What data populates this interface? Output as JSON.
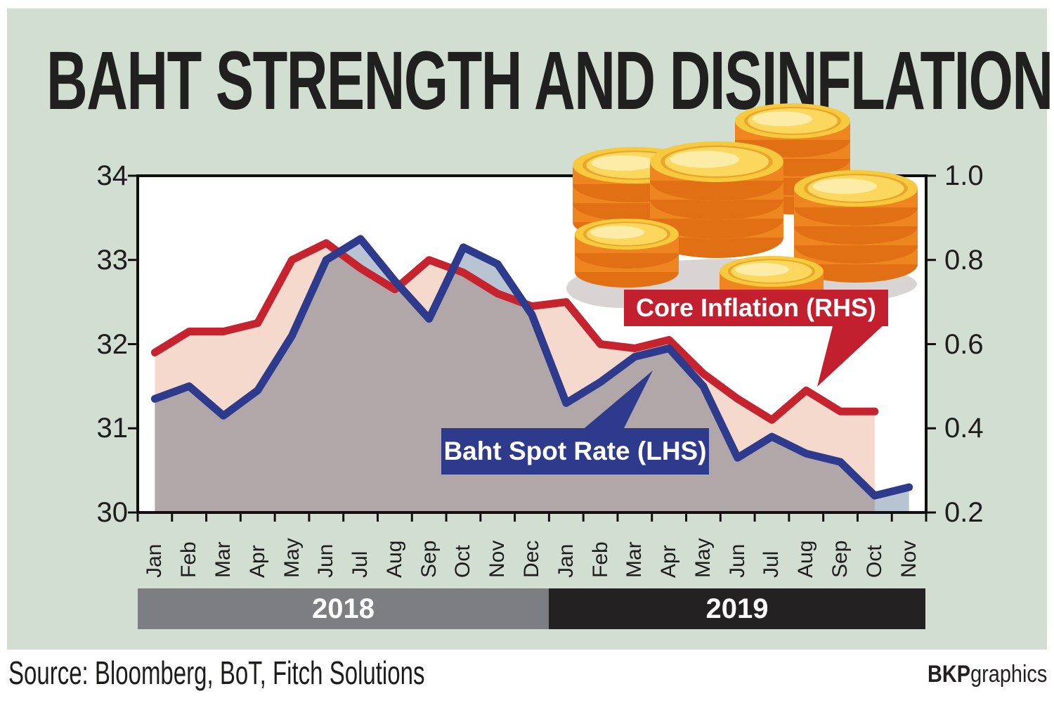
{
  "title": "BAHT STRENGTH AND DISINFLATION",
  "source_note": "Source: Bloomberg, BoT, Fitch Solutions",
  "credit": {
    "bold": "BKP",
    "normal": "graphics"
  },
  "callouts": {
    "core_inflation": {
      "label": "Core Inflation (RHS)",
      "color": "#c3202f"
    },
    "baht_spot": {
      "label": "Baht Spot Rate (LHS)",
      "color": "#2e3a8c"
    }
  },
  "year_bars": [
    {
      "label": "2018",
      "color": "#7d7e82"
    },
    {
      "label": "2019",
      "color": "#242122"
    }
  ],
  "colors": {
    "panel_background": "#d2ded2",
    "plot_background": "#ffffff",
    "axis_line": "#0f0f0e",
    "baht_line": "#2e3a8c",
    "baht_fill": "#b9c4d3",
    "core_line": "#c5242f",
    "core_fill": "#f4d9cc"
  },
  "chart_data": {
    "type": "line",
    "title": "BAHT STRENGTH AND DISINFLATION",
    "x_categories": [
      "Jan",
      "Feb",
      "Mar",
      "Apr",
      "May",
      "Jun",
      "Jul",
      "Aug",
      "Sep",
      "Oct",
      "Nov",
      "Dec",
      "Jan",
      "Feb",
      "Mar",
      "Apr",
      "May",
      "Jun",
      "Jul",
      "Aug",
      "Sep",
      "Oct",
      "Nov"
    ],
    "x_groups": [
      {
        "label": "2018",
        "months": 12
      },
      {
        "label": "2019",
        "months": 11
      }
    ],
    "left_axis": {
      "ticks": [
        "34",
        "33",
        "32",
        "31",
        "30"
      ],
      "tick_values": [
        34,
        33,
        32,
        31,
        30
      ],
      "range": [
        30,
        34
      ]
    },
    "right_axis": {
      "ticks": [
        "1.0",
        "0.8",
        "0.6",
        "0.4",
        "0.2"
      ],
      "tick_values": [
        1.0,
        0.8,
        0.6,
        0.4,
        0.2
      ],
      "range": [
        0.2,
        1.0
      ]
    },
    "grid": false,
    "legend_position": "callout-labels-on-plot",
    "series": [
      {
        "name": "Core Inflation (RHS)",
        "axis": "right",
        "color": "#c5242f",
        "fill": "#f4d9cc",
        "blend": "normal",
        "values": [
          0.58,
          0.63,
          0.63,
          0.65,
          0.8,
          0.84,
          0.78,
          0.73,
          0.8,
          0.77,
          0.72,
          0.69,
          0.7,
          0.6,
          0.59,
          0.61,
          0.53,
          0.47,
          0.42,
          0.49,
          0.44,
          0.44,
          null
        ]
      },
      {
        "name": "Baht Spot Rate (LHS)",
        "axis": "left",
        "color": "#2e3a8c",
        "fill": "#b9c4d3",
        "blend": "multiply",
        "values": [
          31.35,
          31.5,
          31.15,
          31.45,
          32.1,
          33.0,
          33.25,
          32.75,
          32.3,
          33.15,
          32.95,
          32.35,
          31.3,
          31.55,
          31.85,
          31.95,
          31.5,
          30.65,
          30.9,
          30.7,
          30.6,
          30.2,
          30.3
        ]
      }
    ]
  }
}
